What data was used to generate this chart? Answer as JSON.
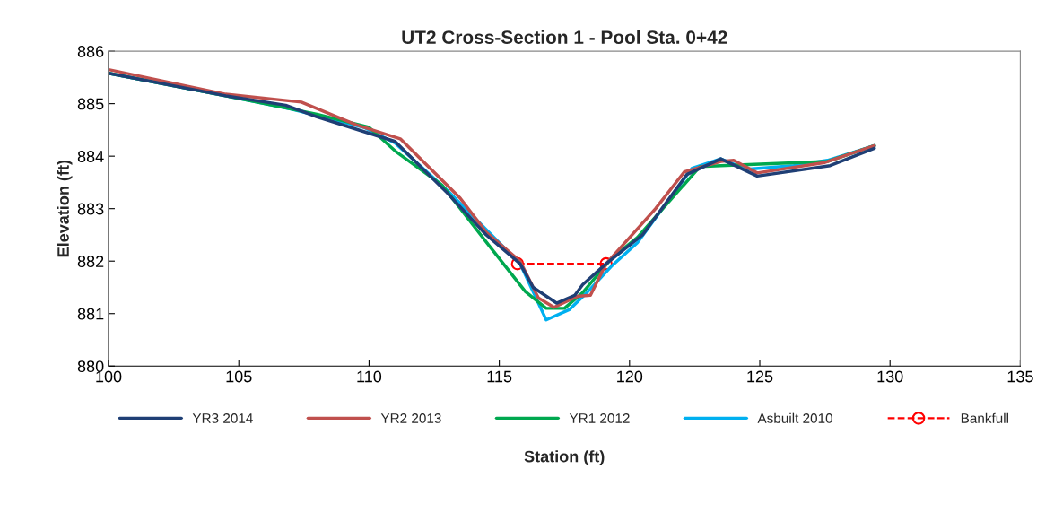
{
  "chart_data": {
    "type": "line",
    "title": "UT2 Cross-Section 1 - Pool Sta. 0+42",
    "xlabel": "Station (ft)",
    "ylabel": "Elevation (ft)",
    "xlim": [
      100,
      135
    ],
    "xticks": [
      100,
      105,
      110,
      115,
      120,
      125,
      130,
      135
    ],
    "ylim": [
      880,
      886
    ],
    "yticks": [
      880,
      881,
      882,
      883,
      884,
      885,
      886
    ],
    "grid": false,
    "legend": "bottom",
    "series": [
      {
        "name": "YR3 2014",
        "color": "#1f3f75",
        "marker": "none",
        "line_style": "solid",
        "x": [
          100,
          104.5,
          106.8,
          108,
          111,
          113,
          114.5,
          115.8,
          116.3,
          117.2,
          117.9,
          118.2,
          119.1,
          120.5,
          122.2,
          123.5,
          124.9,
          127.7,
          129.4
        ],
        "values": [
          885.58,
          885.15,
          884.97,
          884.75,
          884.28,
          883.3,
          882.5,
          881.95,
          881.5,
          881.2,
          881.35,
          881.55,
          881.95,
          882.5,
          883.65,
          883.95,
          883.62,
          883.82,
          884.15
        ]
      },
      {
        "name": "YR2 2013",
        "color": "#c0504d",
        "marker": "none",
        "line_style": "solid",
        "x": [
          100,
          104.5,
          107.4,
          109.5,
          111.2,
          113.5,
          114.5,
          115.8,
          116.5,
          117.1,
          118,
          118.5,
          119.1,
          121,
          122.1,
          123.5,
          124,
          124.9,
          127.5,
          129.4
        ],
        "values": [
          885.65,
          885.18,
          885.03,
          884.6,
          884.33,
          883.2,
          882.55,
          882.0,
          881.3,
          881.12,
          881.33,
          881.35,
          881.95,
          883.0,
          883.7,
          883.9,
          883.92,
          883.68,
          883.88,
          884.2
        ]
      },
      {
        "name": "YR1 2012",
        "color": "#00a84f",
        "marker": "none",
        "line_style": "solid",
        "x": [
          100,
          105,
          108,
          110,
          111,
          112.8,
          114.6,
          116,
          116.8,
          117.5,
          118.2,
          119.3,
          120.3,
          122.7,
          123.5,
          127.6,
          129.4
        ],
        "values": [
          885.58,
          885.1,
          884.8,
          884.55,
          884.1,
          883.45,
          882.3,
          881.42,
          881.1,
          881.1,
          881.4,
          882.05,
          882.45,
          883.8,
          883.82,
          883.9,
          884.2
        ]
      },
      {
        "name": "Asbuilt 2010",
        "color": "#00b0f0",
        "marker": "none",
        "line_style": "solid",
        "x": [
          100,
          104.5,
          107,
          109.8,
          111,
          113,
          115.8,
          116.8,
          117.7,
          118.4,
          119.3,
          120.3,
          122.4,
          123.5,
          124.5,
          126.3,
          127.6,
          129.4
        ],
        "values": [
          885.58,
          885.15,
          884.9,
          884.55,
          884.25,
          883.35,
          881.95,
          880.88,
          881.08,
          881.42,
          881.9,
          882.35,
          883.77,
          883.95,
          883.75,
          883.82,
          883.92,
          884.2
        ]
      },
      {
        "name": "Bankfull",
        "color": "#ff0000",
        "marker": "circle",
        "line_style": "dashed",
        "x": [
          115.7,
          119.1
        ],
        "values": [
          881.95,
          881.95
        ]
      }
    ]
  }
}
